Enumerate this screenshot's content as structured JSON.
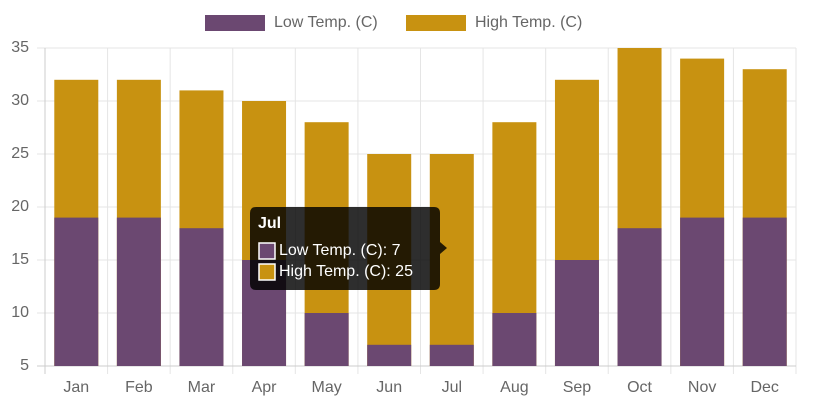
{
  "chart_data": {
    "type": "bar",
    "categories": [
      "Jan",
      "Feb",
      "Mar",
      "Apr",
      "May",
      "Jun",
      "Jul",
      "Aug",
      "Sep",
      "Oct",
      "Nov",
      "Dec"
    ],
    "series": [
      {
        "name": "Low Temp. (C)",
        "color": "#6b4871",
        "values": [
          19,
          19,
          18,
          15,
          10,
          7,
          7,
          10,
          15,
          18,
          19,
          19
        ]
      },
      {
        "name": "High Temp. (C)",
        "color": "#c89211",
        "values": [
          32,
          32,
          31,
          30,
          28,
          25,
          25,
          28,
          32,
          35,
          34,
          33
        ]
      }
    ],
    "ylim": [
      5,
      35
    ],
    "yticks": [
      5,
      10,
      15,
      20,
      25,
      30,
      35
    ],
    "grid": true,
    "legend": "top",
    "tooltip": {
      "title": "Jul",
      "lines": [
        "Low Temp. (C): 7",
        "High Temp. (C): 25"
      ]
    }
  }
}
